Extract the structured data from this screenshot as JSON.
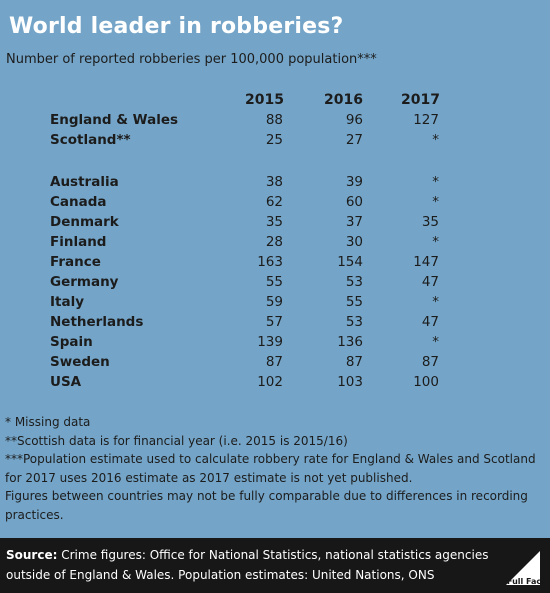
{
  "title": "World leader in robberies?",
  "subtitle": "Number of reported robberies per 100,000 population***",
  "chart_data": {
    "type": "table",
    "columns": [
      "2015",
      "2016",
      "2017"
    ],
    "rows": [
      {
        "name": "England & Wales",
        "values": [
          "88",
          "96",
          "127"
        ]
      },
      {
        "name": "Scotland**",
        "values": [
          "25",
          "27",
          "*"
        ]
      },
      {
        "name": "Australia",
        "values": [
          "38",
          "39",
          "*"
        ]
      },
      {
        "name": "Canada",
        "values": [
          "62",
          "60",
          "*"
        ]
      },
      {
        "name": "Denmark",
        "values": [
          "35",
          "37",
          "35"
        ]
      },
      {
        "name": "Finland",
        "values": [
          "28",
          "30",
          "*"
        ]
      },
      {
        "name": "France",
        "values": [
          "163",
          "154",
          "147"
        ]
      },
      {
        "name": "Germany",
        "values": [
          "55",
          "53",
          "47"
        ]
      },
      {
        "name": "Italy",
        "values": [
          "59",
          "55",
          "*"
        ]
      },
      {
        "name": "Netherlands",
        "values": [
          "57",
          "53",
          "47"
        ]
      },
      {
        "name": "Spain",
        "values": [
          "139",
          "136",
          "*"
        ]
      },
      {
        "name": "Sweden",
        "values": [
          "87",
          "87",
          "87"
        ]
      },
      {
        "name": "USA",
        "values": [
          "102",
          "103",
          "100"
        ]
      }
    ]
  },
  "notes": [
    "* Missing data",
    "**Scottish data is for financial year (i.e. 2015 is 2015/16)",
    "***Population estimate used to calculate robbery rate for England & Wales and Scotland for 2017 uses 2016 estimate as 2017 estimate is not yet published.",
    "Figures between countries may not be fully comparable due to differences in recording practices."
  ],
  "footer": {
    "label": "Source:",
    "text": "Crime figures: Office for National Statistics, national statistics agencies outside of England & Wales. Population estimates: United Nations, ONS",
    "logo_text": "Full Fact"
  },
  "colors": {
    "background": "#74a5c8",
    "footer": "#171717",
    "title": "#ffffff"
  }
}
